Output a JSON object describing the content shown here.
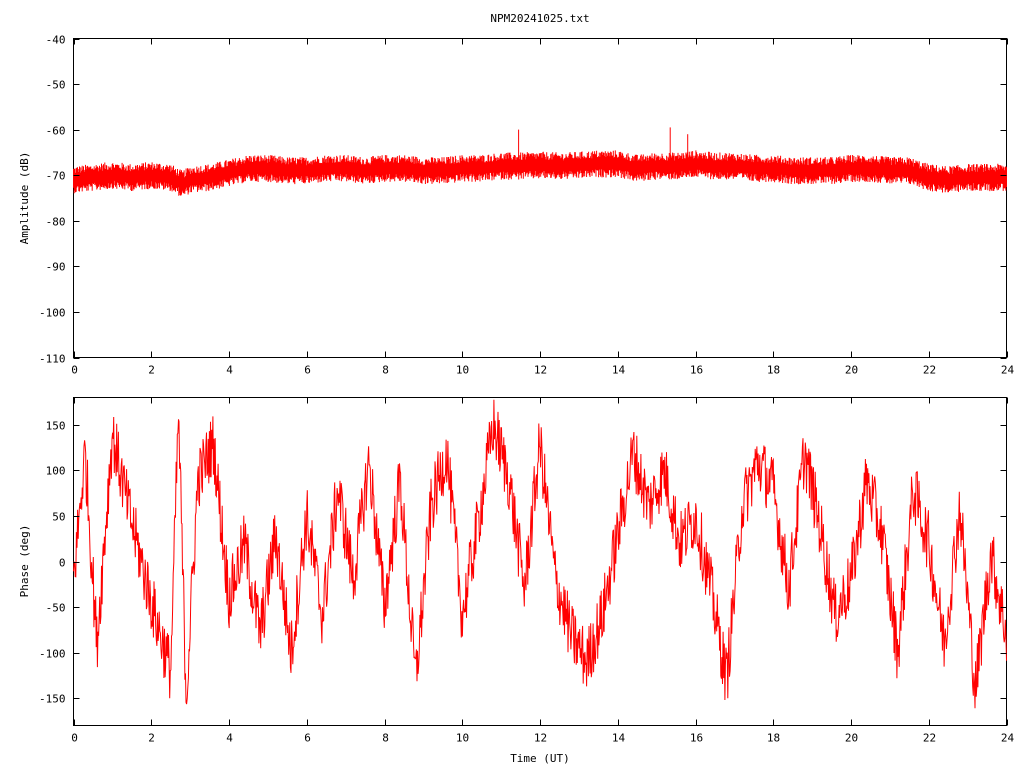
{
  "figure": {
    "title": "NPM20241025.txt"
  },
  "colors": {
    "trace": "#ff0000",
    "axes": "#000000",
    "background": "#ffffff"
  },
  "chart_data": [
    {
      "type": "line",
      "title": "NPM20241025.txt",
      "xlabel": "",
      "ylabel": "Amplitude (dB)",
      "xlim": [
        0,
        24
      ],
      "ylim": [
        -110,
        -40
      ],
      "x_ticks": [
        "0",
        "2",
        "4",
        "6",
        "8",
        "10",
        "12",
        "14",
        "16",
        "18",
        "20",
        "22",
        "24"
      ],
      "y_ticks": [
        "-40",
        "-50",
        "-60",
        "-70",
        "-80",
        "-90",
        "-100",
        "-110"
      ],
      "grid": false,
      "series": [
        {
          "x": [
            0,
            0.5,
            1,
            1.5,
            2,
            2.5,
            2.8,
            3,
            3.5,
            4,
            4.5,
            5,
            5.5,
            6,
            6.5,
            7,
            7.5,
            8,
            8.5,
            9,
            9.5,
            10,
            10.5,
            11,
            11.5,
            12,
            12.5,
            13,
            13.5,
            14,
            14.5,
            15,
            15.5,
            16,
            16.5,
            17,
            17.5,
            18,
            18.5,
            19,
            19.5,
            20,
            20.5,
            21,
            21.5,
            22,
            22.5,
            23,
            23.5,
            24
          ],
          "values": [
            -71,
            -70.5,
            -70,
            -70.5,
            -70,
            -70.5,
            -72,
            -71,
            -70.5,
            -69.5,
            -68.5,
            -68.5,
            -69,
            -69,
            -68.5,
            -68.5,
            -69,
            -68.5,
            -68.5,
            -69,
            -69,
            -68.5,
            -68.5,
            -68,
            -68,
            -67.8,
            -68,
            -67.8,
            -67.5,
            -67.5,
            -68.5,
            -68,
            -68,
            -67.5,
            -68,
            -68,
            -68.5,
            -68.5,
            -69,
            -69,
            -69,
            -68.5,
            -68.5,
            -69,
            -69,
            -70.5,
            -71,
            -70.5,
            -70.5,
            -70.5
          ],
          "band_half_width": 3,
          "spikes": [
            {
              "x": 11.45,
              "value": -60
            },
            {
              "x": 15.35,
              "value": -59.5
            },
            {
              "x": 15.8,
              "value": -61
            }
          ]
        }
      ]
    },
    {
      "type": "line",
      "title": "",
      "xlabel": "Time (UT)",
      "ylabel": "Phase (deg)",
      "xlim": [
        0,
        24
      ],
      "ylim": [
        -180,
        180
      ],
      "x_ticks": [
        "0",
        "2",
        "4",
        "6",
        "8",
        "10",
        "12",
        "14",
        "16",
        "18",
        "20",
        "22",
        "24"
      ],
      "y_ticks": [
        "150",
        "100",
        "50",
        "0",
        "-50",
        "-100",
        "-150"
      ],
      "y_tick_values": [
        150,
        100,
        50,
        0,
        -50,
        -100,
        -150
      ],
      "grid": false,
      "series": [
        {
          "x": [
            0,
            0.3,
            0.6,
            1,
            1.4,
            1.8,
            2.1,
            2.5,
            2.7,
            2.9,
            3.2,
            3.6,
            4,
            4.4,
            4.8,
            5.2,
            5.6,
            6,
            6.4,
            6.8,
            7.2,
            7.6,
            8,
            8.4,
            8.8,
            9.2,
            9.6,
            10,
            10.4,
            10.8,
            11.2,
            11.6,
            12,
            12.4,
            12.8,
            13.2,
            13.6,
            14,
            14.4,
            14.8,
            15.2,
            15.6,
            16,
            16.4,
            16.8,
            17.2,
            17.6,
            18,
            18.4,
            18.8,
            19.2,
            19.6,
            20,
            20.4,
            20.8,
            21.2,
            21.6,
            22,
            22.4,
            22.8,
            23.2,
            23.6,
            24
          ],
          "values": [
            -20,
            120,
            -90,
            140,
            60,
            -10,
            -60,
            -120,
            160,
            -150,
            90,
            130,
            -40,
            20,
            -80,
            30,
            -100,
            50,
            -60,
            80,
            -20,
            110,
            -50,
            90,
            -130,
            60,
            120,
            -60,
            40,
            150,
            90,
            -30,
            130,
            -20,
            -80,
            -110,
            -60,
            30,
            120,
            60,
            100,
            20,
            50,
            -30,
            -130,
            60,
            110,
            80,
            -30,
            120,
            40,
            -60,
            -20,
            90,
            30,
            -100,
            80,
            20,
            -90,
            60,
            -140,
            10,
            -80
          ],
          "noise_half_width": 35
        }
      ]
    }
  ]
}
